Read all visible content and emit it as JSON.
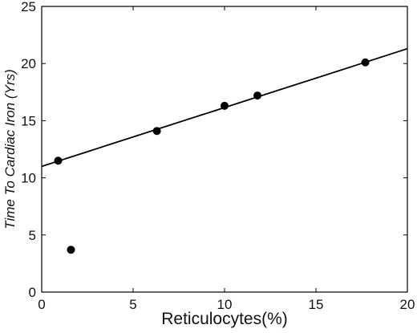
{
  "chart_data": {
    "type": "scatter",
    "title": "",
    "xlabel": "Reticulocytes(%)",
    "ylabel": "Time To Cardiac Iron (Yrs)",
    "xlim": [
      0,
      20
    ],
    "ylim": [
      0,
      25
    ],
    "x_ticks": [
      "0",
      "5",
      "10",
      "15",
      "20"
    ],
    "y_ticks": [
      "0",
      "5",
      "10",
      "15",
      "20",
      "25"
    ],
    "grid": false,
    "legend": "none",
    "series": [
      {
        "points": [
          {
            "x": 0.9,
            "y": 11.5
          },
          {
            "x": 1.6,
            "y": 3.7
          },
          {
            "x": 6.3,
            "y": 14.1
          },
          {
            "x": 10.0,
            "y": 16.3
          },
          {
            "x": 11.8,
            "y": 17.2
          },
          {
            "x": 17.7,
            "y": 20.1
          }
        ]
      }
    ],
    "fit_line": {
      "type": "linear",
      "from": {
        "x": 0,
        "y": 11.0
      },
      "to": {
        "x": 20,
        "y": 21.3
      }
    },
    "colors": {
      "marker": "#000000",
      "line": "#000000",
      "axis": "#000000"
    }
  }
}
